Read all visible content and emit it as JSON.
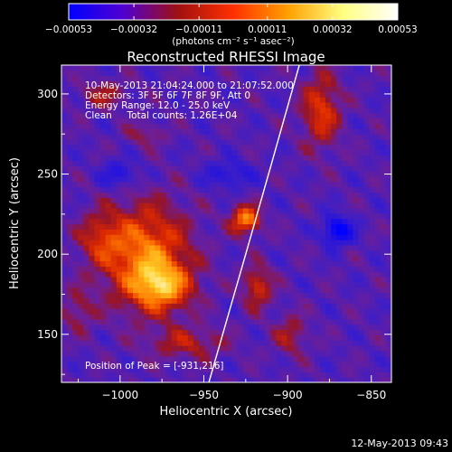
{
  "chart_data": {
    "type": "heatmap",
    "title": "Reconstructed RHESSI Image",
    "xlabel": "Heliocentric X (arcsec)",
    "ylabel": "Heliocentric Y (arcsec)",
    "xlim": [
      -1035,
      -838
    ],
    "ylim": [
      120,
      318
    ],
    "x_ticks": [
      -1000,
      -950,
      -900,
      -850
    ],
    "x_tick_labels": [
      "−1000",
      "−950",
      "−900",
      "−850"
    ],
    "y_ticks": [
      150,
      200,
      250,
      300
    ],
    "y_tick_labels": [
      "150",
      "200",
      "250",
      "300"
    ],
    "colorbar": {
      "range": [
        -0.00053,
        0.00053
      ],
      "tick_labels": [
        "−0.00053",
        "−0.00032",
        "−0.00011",
        "0.00011",
        "0.00032",
        "0.00053"
      ],
      "units_label": "(photons cm⁻² s⁻¹ asec⁻²)",
      "colors": [
        "#0000ff",
        "#5000d0",
        "#a01010",
        "#ff3000",
        "#ffa000",
        "#ffff80",
        "#ffffff"
      ]
    },
    "annotations": [
      "10-May-2013 21:04:24.000 to 21:07:52.000",
      "Detectors: 3F 5F 6F 7F 8F 9F, Att 0",
      "Energy Range: 12.0 - 25.0 keV",
      "Clean     Total counts: 1.26E+04"
    ],
    "peak_label": "Position of Peak = [-931,216]",
    "peak_position": [
      -931,
      216
    ],
    "limb_curve": [
      [
        -947,
        120
      ],
      [
        -925,
        200
      ],
      [
        -910,
        255
      ],
      [
        -893,
        318
      ]
    ],
    "sources": [
      {
        "x": -985,
        "y": 200,
        "sx": 18,
        "sy": 22,
        "amp": 0.00042
      },
      {
        "x": -975,
        "y": 180,
        "sx": 12,
        "sy": 10,
        "amp": 0.00038
      },
      {
        "x": -1012,
        "y": 210,
        "sx": 9,
        "sy": 11,
        "amp": 0.0002
      },
      {
        "x": -925,
        "y": 222,
        "sx": 6,
        "sy": 6,
        "amp": 0.00045
      },
      {
        "x": -918,
        "y": 180,
        "sx": 6,
        "sy": 9,
        "amp": 0.00028
      },
      {
        "x": -880,
        "y": 290,
        "sx": 8,
        "sy": 16,
        "amp": 0.0003
      },
      {
        "x": -1010,
        "y": 300,
        "sx": 10,
        "sy": 6,
        "amp": 0.00018
      },
      {
        "x": -960,
        "y": 145,
        "sx": 16,
        "sy": 7,
        "amp": 0.0002
      },
      {
        "x": -1025,
        "y": 165,
        "sx": 7,
        "sy": 9,
        "amp": 0.00016
      },
      {
        "x": -985,
        "y": 275,
        "sx": 8,
        "sy": 5,
        "amp": 0.00014
      },
      {
        "x": -898,
        "y": 150,
        "sx": 7,
        "sy": 9,
        "amp": 0.00018
      },
      {
        "x": -870,
        "y": 215,
        "sx": 6,
        "sy": 6,
        "amp": -0.0004
      },
      {
        "x": -935,
        "y": 250,
        "sx": 10,
        "sy": 6,
        "amp": -0.00018
      },
      {
        "x": -1000,
        "y": 250,
        "sx": 8,
        "sy": 6,
        "amp": -0.0002
      }
    ]
  },
  "footer": {
    "timestamp": "12-May-2013 09:43"
  }
}
